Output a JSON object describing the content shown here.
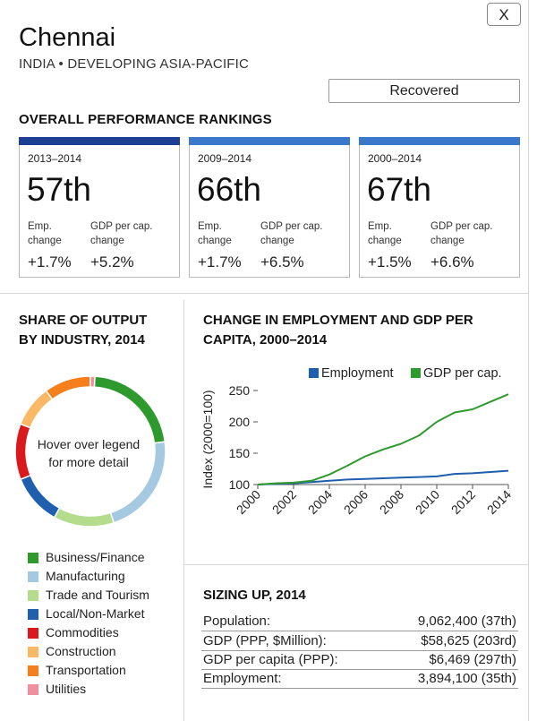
{
  "header": {
    "close_label": "X",
    "city": "Chennai",
    "region": "INDIA • DEVELOPING ASIA-PACIFIC",
    "status": "Recovered"
  },
  "rankings": {
    "heading": "OVERALL PERFORMANCE RANKINGS",
    "cards": [
      {
        "period": "2013–2014",
        "rank": "57th",
        "emp_label_1": "Emp.",
        "emp_label_2": "change",
        "gdp_label_1": "GDP per cap.",
        "gdp_label_2": "change",
        "emp_change": "+1.7%",
        "gdp_change": "+5.2%",
        "bar_color": "#1c3f94"
      },
      {
        "period": "2009–2014",
        "rank": "66th",
        "emp_label_1": "Emp.",
        "emp_label_2": "change",
        "gdp_label_1": "GDP per cap.",
        "gdp_label_2": "change",
        "emp_change": "+1.7%",
        "gdp_change": "+6.5%",
        "bar_color": "#3b78c9"
      },
      {
        "period": "2000–2014",
        "rank": "67th",
        "emp_label_1": "Emp.",
        "emp_label_2": "change",
        "gdp_label_1": "GDP per cap.",
        "gdp_label_2": "change",
        "emp_change": "+1.5%",
        "gdp_change": "+6.6%",
        "bar_color": "#3b78c9"
      }
    ]
  },
  "share": {
    "heading_1": "SHARE OF OUTPUT",
    "heading_2": "BY INDUSTRY, 2014",
    "hint_1": "Hover over legend",
    "hint_2": "for more detail",
    "legend": [
      {
        "label": "Business/Finance",
        "color": "#2e9a2e"
      },
      {
        "label": "Manufacturing",
        "color": "#a6c9e2"
      },
      {
        "label": "Trade and Tourism",
        "color": "#b3dd8d"
      },
      {
        "label": "Local/Non-Market",
        "color": "#1f5fad"
      },
      {
        "label": "Commodities",
        "color": "#d9191c"
      },
      {
        "label": "Construction",
        "color": "#fbb867"
      },
      {
        "label": "Transportation",
        "color": "#f57f1c"
      },
      {
        "label": "Utilities",
        "color": "#f18f9c"
      }
    ],
    "slice_shares": [
      0.22,
      0.22,
      0.13,
      0.11,
      0.12,
      0.09,
      0.1,
      0.01
    ]
  },
  "change": {
    "heading_1": "CHANGE IN EMPLOYMENT AND GDP PER",
    "heading_2": "CAPITA, 2000–2014"
  },
  "chart_data": {
    "type": "line",
    "ylabel": "Index (2000=100)",
    "xlabel": "",
    "ylim": [
      100,
      250
    ],
    "xlim": [
      2000,
      2014
    ],
    "yticks": [
      100,
      150,
      200,
      250
    ],
    "xticks": [
      2000,
      2002,
      2004,
      2006,
      2008,
      2010,
      2012,
      2014
    ],
    "legend_position": "top",
    "series": [
      {
        "name": "Employment",
        "color": "#1f5fad",
        "x": [
          2000,
          2001,
          2002,
          2003,
          2004,
          2005,
          2006,
          2007,
          2008,
          2009,
          2010,
          2011,
          2012,
          2013,
          2014
        ],
        "y": [
          100,
          101,
          102,
          104,
          106,
          108,
          109,
          110,
          111,
          112,
          113,
          117,
          118,
          120,
          122
        ]
      },
      {
        "name": "GDP per cap.",
        "color": "#2e9a2e",
        "x": [
          2000,
          2001,
          2002,
          2003,
          2004,
          2005,
          2006,
          2007,
          2008,
          2009,
          2010,
          2011,
          2012,
          2013,
          2014
        ],
        "y": [
          100,
          102,
          103,
          106,
          116,
          130,
          145,
          156,
          165,
          178,
          200,
          215,
          220,
          232,
          244
        ]
      }
    ]
  },
  "sizing": {
    "heading": "SIZING UP, 2014",
    "rows": [
      {
        "label": "Population:",
        "value": "9,062,400 (37th)"
      },
      {
        "label": "GDP (PPP, $Million):",
        "value": "$58,625 (203rd)"
      },
      {
        "label": "GDP per capita (PPP):",
        "value": "$6,469 (297th)"
      },
      {
        "label": "Employment:",
        "value": "3,894,100 (35th)"
      }
    ]
  }
}
